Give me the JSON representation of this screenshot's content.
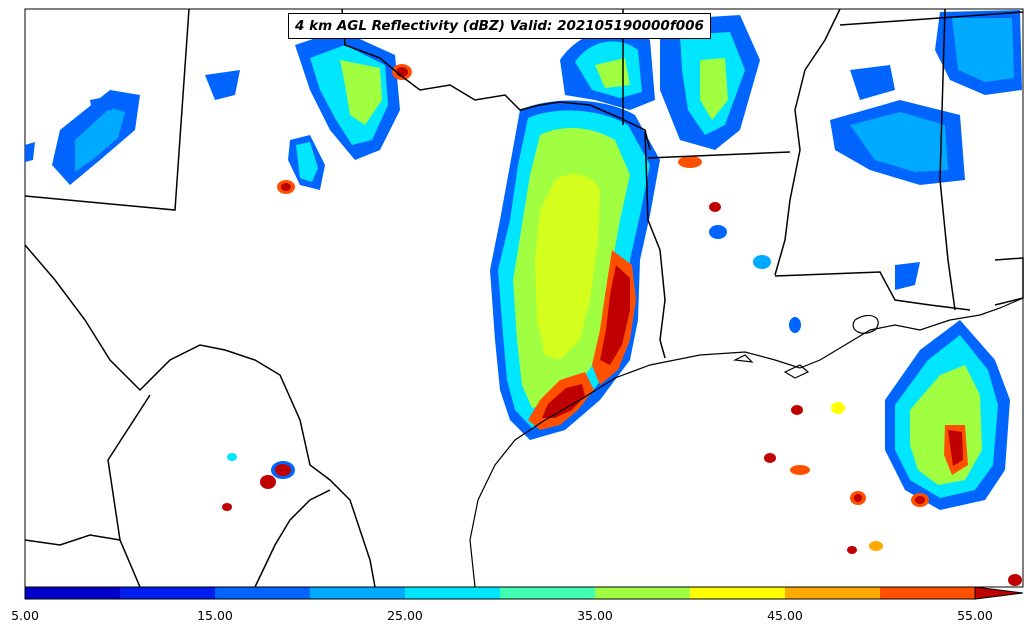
{
  "title": "4 km AGL Reflectivity (dBZ) Valid: 202105190000f006",
  "colorbar": {
    "tick_labels": [
      "5.00",
      "15.00",
      "25.00",
      "35.00",
      "45.00",
      "55.00"
    ],
    "colors": [
      "#0000c8",
      "#001ef0",
      "#0064ff",
      "#00aaff",
      "#00e6ff",
      "#40ffb0",
      "#a0ff40",
      "#ffff00",
      "#ffaa00",
      "#ff5000",
      "#c00000"
    ],
    "extend": "max"
  }
}
